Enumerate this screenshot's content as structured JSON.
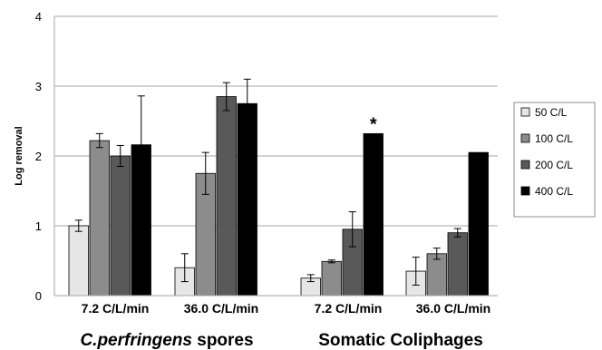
{
  "chart_data": {
    "type": "bar",
    "ylabel": "Log removal",
    "ylim": [
      0,
      4
    ],
    "yticks": [
      "0",
      "1",
      "2",
      "3",
      "4"
    ],
    "grid": "horizontal",
    "legend_position": "right",
    "categories": [
      "7.2 C/L/min",
      "36.0 C/L/min",
      "7.2 C/L/min",
      "36.0 C/L/min"
    ],
    "groups": [
      {
        "label_italic": "C.perfringens",
        "label_rest": " spores"
      },
      {
        "label_italic": "",
        "label_rest": "Somatic Coliphages"
      }
    ],
    "series": [
      {
        "name": "50 C/L",
        "color": "#e6e6e6",
        "values": [
          1.0,
          0.4,
          0.25,
          0.35
        ],
        "errors": [
          0.08,
          0.2,
          0.05,
          0.2
        ]
      },
      {
        "name": "100 C/L",
        "color": "#8c8c8c",
        "values": [
          2.22,
          1.75,
          0.49,
          0.6
        ],
        "errors": [
          0.1,
          0.3,
          0.02,
          0.08
        ]
      },
      {
        "name": "200 C/L",
        "color": "#595959",
        "values": [
          2.0,
          2.85,
          0.95,
          0.9
        ],
        "errors": [
          0.15,
          0.2,
          0.25,
          0.06
        ]
      },
      {
        "name": "400 C/L",
        "color": "#000000",
        "values": [
          2.16,
          2.75,
          2.32,
          2.05
        ],
        "errors": [
          0.7,
          0.35,
          0,
          0
        ]
      }
    ],
    "annotations": [
      {
        "text": "*",
        "category_index": 2,
        "series_index": 3
      }
    ]
  }
}
